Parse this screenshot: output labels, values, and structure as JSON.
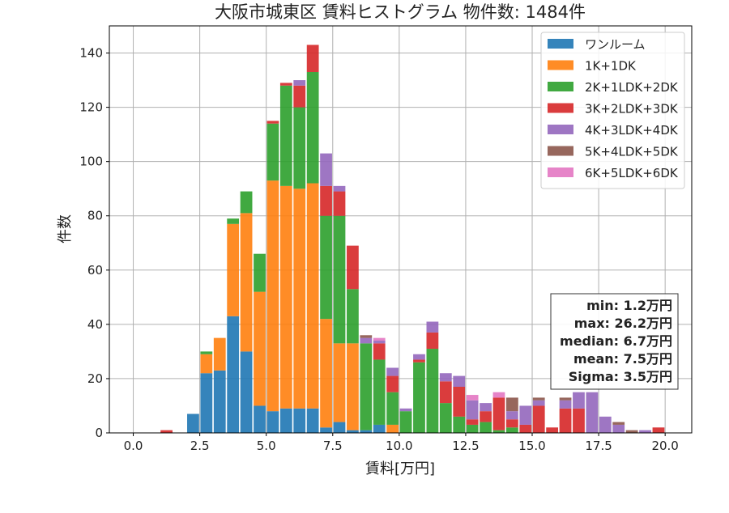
{
  "chart_data": {
    "type": "bar",
    "stacked": true,
    "title": "大阪市城東区 賃料ヒストグラム 物件数: 1484件",
    "xlabel": "賃料[万円]",
    "ylabel": "件数",
    "xlim": [
      -0.9,
      21.0
    ],
    "ylim": [
      0,
      150
    ],
    "grid": true,
    "legend_position": "top-right",
    "bin_width": 0.5,
    "x_ticks": [
      0.0,
      2.5,
      5.0,
      7.5,
      10.0,
      12.5,
      15.0,
      17.5,
      20.0
    ],
    "x_tick_labels": [
      "0.0",
      "2.5",
      "5.0",
      "7.5",
      "10.0",
      "12.5",
      "15.0",
      "17.5",
      "20.0"
    ],
    "y_ticks": [
      0,
      20,
      40,
      60,
      80,
      100,
      120,
      140
    ],
    "y_tick_labels": [
      "0",
      "20",
      "40",
      "60",
      "80",
      "100",
      "120",
      "140"
    ],
    "bin_starts": [
      1.0,
      2.0,
      2.5,
      3.0,
      3.5,
      4.0,
      4.5,
      5.0,
      5.5,
      6.0,
      6.5,
      7.0,
      7.5,
      8.0,
      8.5,
      9.0,
      9.5,
      10.0,
      10.5,
      11.0,
      11.5,
      12.0,
      12.5,
      13.0,
      13.5,
      14.0,
      14.5,
      15.0,
      15.5,
      16.0,
      16.5,
      17.0,
      17.5,
      18.0,
      18.5,
      19.0,
      19.5
    ],
    "series": [
      {
        "name": "ワンルーム",
        "color": "#1f77b4",
        "values": [
          0,
          7,
          22,
          23,
          43,
          30,
          10,
          8,
          9,
          9,
          9,
          2,
          4,
          1,
          1,
          3,
          0,
          0,
          0,
          0,
          0,
          0,
          0,
          0,
          0,
          0,
          0,
          0,
          0,
          0,
          0,
          0,
          0,
          0,
          0,
          0,
          0
        ]
      },
      {
        "name": "1K+1DK",
        "color": "#ff7f0e",
        "values": [
          0,
          0,
          7,
          12,
          34,
          51,
          42,
          85,
          82,
          81,
          83,
          40,
          29,
          32,
          0,
          0,
          3,
          0,
          0,
          0,
          0,
          0,
          0,
          0,
          0,
          0,
          0,
          0,
          0,
          0,
          0,
          0,
          0,
          0,
          0,
          0,
          0
        ]
      },
      {
        "name": "2K+1LDK+2DK",
        "color": "#2ca02c",
        "values": [
          0,
          0,
          1,
          0,
          2,
          8,
          14,
          21,
          37,
          30,
          41,
          38,
          47,
          20,
          32,
          24,
          12,
          8,
          26,
          31,
          11,
          6,
          3,
          4,
          1,
          2,
          0,
          0,
          0,
          0,
          0,
          0,
          0,
          0,
          0,
          0,
          0
        ]
      },
      {
        "name": "3K+2LDK+3DK",
        "color": "#d62728",
        "values": [
          1,
          0,
          0,
          0,
          0,
          0,
          0,
          1,
          1,
          8,
          10,
          11,
          9,
          16,
          0,
          6,
          6,
          0,
          1,
          6,
          8,
          11,
          2,
          4,
          12,
          3,
          3,
          10,
          2,
          9,
          9,
          0,
          0,
          0,
          0,
          0,
          2
        ]
      },
      {
        "name": "4K+3LDK+4DK",
        "color": "#9467bd",
        "values": [
          0,
          0,
          0,
          0,
          0,
          0,
          0,
          0,
          0,
          2,
          0,
          12,
          2,
          0,
          2,
          1,
          3,
          1,
          2,
          4,
          3,
          4,
          7,
          3,
          0,
          3,
          7,
          2,
          0,
          3,
          6,
          15,
          6,
          3,
          0,
          1,
          0
        ]
      },
      {
        "name": "5K+4LDK+5DK",
        "color": "#8c564b",
        "values": [
          0,
          0,
          0,
          0,
          0,
          0,
          0,
          0,
          0,
          0,
          0,
          0,
          0,
          0,
          1,
          0,
          0,
          0,
          0,
          0,
          0,
          0,
          0,
          0,
          0,
          5,
          0,
          1,
          0,
          1,
          0,
          0,
          0,
          1,
          1,
          0,
          0
        ]
      },
      {
        "name": "6K+5LDK+6DK",
        "color": "#e377c2",
        "values": [
          0,
          0,
          0,
          0,
          0,
          0,
          0,
          0,
          0,
          0,
          0,
          0,
          0,
          0,
          0,
          1,
          0,
          0,
          0,
          0,
          0,
          0,
          2,
          0,
          2,
          0,
          0,
          0,
          0,
          0,
          0,
          0,
          0,
          0,
          0,
          0,
          0
        ]
      }
    ],
    "annotation_lines": [
      "min: 1.2万円",
      "max: 26.2万円",
      "median: 6.7万円",
      "mean: 7.5万円",
      "Sigma: 3.5万円"
    ]
  }
}
